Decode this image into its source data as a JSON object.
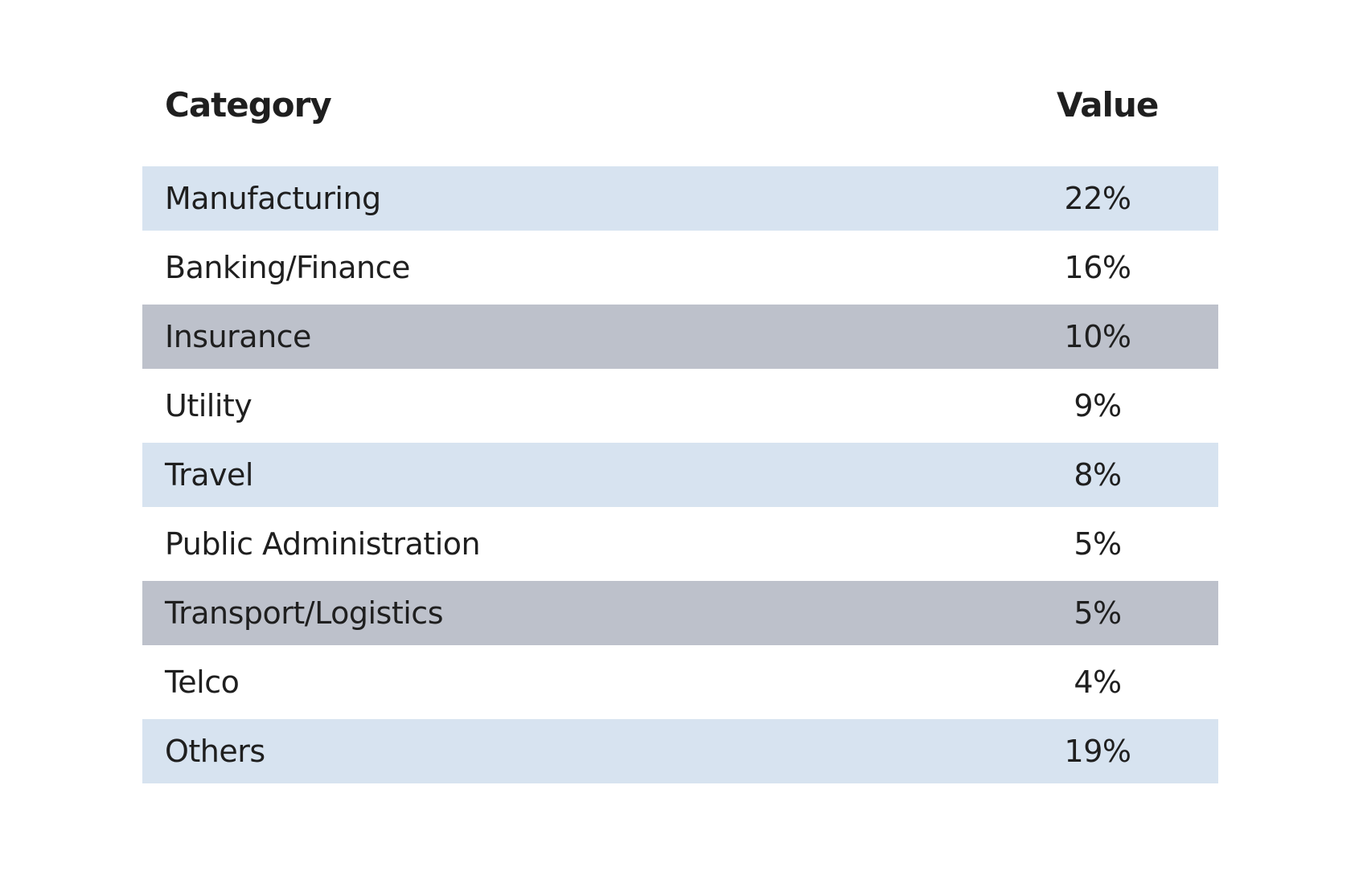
{
  "chart_data": {
    "type": "table",
    "columns": [
      "Category",
      "Value"
    ],
    "rows": [
      {
        "category": "Manufacturing",
        "value": "22%",
        "shade": "#d7e3f0"
      },
      {
        "category": "Banking/Finance",
        "value": "16%",
        "shade": "#ffffff"
      },
      {
        "category": "Insurance",
        "value": "10%",
        "shade": "#bdc1cb"
      },
      {
        "category": "Utility",
        "value": "9%",
        "shade": "#ffffff"
      },
      {
        "category": "Travel",
        "value": "8%",
        "shade": "#d7e3f0"
      },
      {
        "category": "Public Administration",
        "value": "5%",
        "shade": "#ffffff"
      },
      {
        "category": "Transport/Logistics",
        "value": "5%",
        "shade": "#bdc1cb"
      },
      {
        "category": "Telco",
        "value": "4%",
        "shade": "#ffffff"
      },
      {
        "category": "Others",
        "value": "19%",
        "shade": "#d7e3f0"
      }
    ]
  }
}
